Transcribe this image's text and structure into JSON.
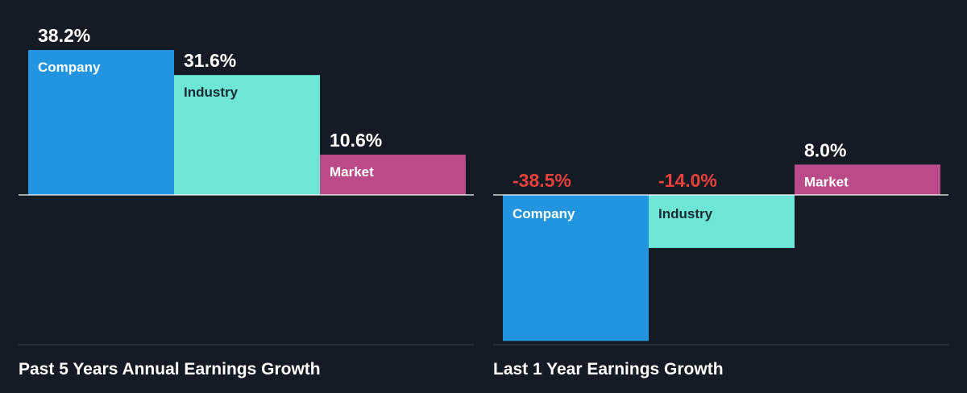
{
  "colors": {
    "background": "#151b24",
    "company": "#2394e0",
    "industry": "#6de6d5",
    "market": "#bb4a89",
    "positive_text": "#ffffff",
    "negative_text": "#e8413b",
    "on_dark_bar_text": "#ffffff",
    "on_light_bar_text": "#1b2a33",
    "axis": "#ffffff",
    "baseline": "#3a4049"
  },
  "chart_data": [
    {
      "type": "bar",
      "title": "Past 5 Years Annual Earnings Growth",
      "categories": [
        "Company",
        "Industry",
        "Market"
      ],
      "values": [
        38.2,
        31.6,
        10.6
      ],
      "value_labels": [
        "38.2%",
        "31.6%",
        "10.6%"
      ],
      "unit": "%"
    },
    {
      "type": "bar",
      "title": "Last 1 Year Earnings Growth",
      "categories": [
        "Company",
        "Industry",
        "Market"
      ],
      "values": [
        -38.5,
        -14.0,
        8.0
      ],
      "value_labels": [
        "-38.5%",
        "-14.0%",
        "8.0%"
      ],
      "unit": "%"
    }
  ]
}
